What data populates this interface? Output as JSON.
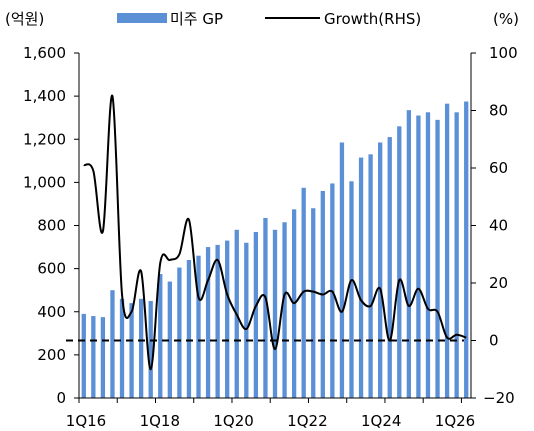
{
  "chart_data": {
    "type": "bar",
    "unit_left": "(억원)",
    "unit_right": "(%)",
    "legend": {
      "placement": "top"
    },
    "x_tick_labels": [
      "1Q16",
      "1Q18",
      "1Q20",
      "1Q22",
      "1Q24",
      "1Q26"
    ],
    "left_axis": {
      "ylim": [
        0,
        1600
      ],
      "ticks": [
        0,
        200,
        400,
        600,
        800,
        1000,
        1200,
        1400,
        1600
      ]
    },
    "right_axis": {
      "ylim": [
        -20,
        100
      ],
      "ticks": [
        -20,
        0,
        20,
        40,
        60,
        80,
        100
      ]
    },
    "categories": [
      "1Q16",
      "2Q16",
      "3Q16",
      "4Q16",
      "1Q17",
      "2Q17",
      "3Q17",
      "4Q17",
      "1Q18",
      "2Q18",
      "3Q18",
      "4Q18",
      "1Q19",
      "2Q19",
      "3Q19",
      "4Q19",
      "1Q20",
      "2Q20",
      "3Q20",
      "4Q20",
      "1Q21",
      "2Q21",
      "3Q21",
      "4Q21",
      "1Q22",
      "2Q22",
      "3Q22",
      "4Q22",
      "1Q23",
      "2Q23",
      "3Q23",
      "4Q23",
      "1Q24",
      "2Q24",
      "3Q24",
      "4Q24",
      "1Q25",
      "2Q25",
      "3Q25",
      "4Q25",
      "1Q26"
    ],
    "series": [
      {
        "name": "미주 GP",
        "type": "bar",
        "axis": "left",
        "color": "#5b8fd6",
        "values": [
          390,
          380,
          375,
          500,
          460,
          440,
          460,
          450,
          575,
          540,
          605,
          640,
          660,
          700,
          710,
          730,
          780,
          720,
          770,
          835,
          780,
          815,
          875,
          975,
          880,
          960,
          995,
          1185,
          1005,
          1115,
          1130,
          1185,
          1210,
          1260,
          1335,
          1310,
          1325,
          1290,
          1365,
          1325,
          1375
        ]
      },
      {
        "name": "Growth(RHS)",
        "type": "line",
        "axis": "right",
        "color": "#000000",
        "values": [
          61,
          59,
          38,
          85,
          16,
          10,
          24,
          -10,
          27,
          28,
          30,
          42,
          15,
          21,
          28,
          16,
          9,
          4,
          12,
          15,
          -3,
          16,
          13,
          17,
          17,
          16,
          17,
          10,
          21,
          14,
          12,
          18,
          0,
          21,
          12,
          18,
          11,
          10,
          1,
          2,
          1
        ]
      }
    ],
    "reference_line": {
      "axis": "right",
      "value": 0,
      "style": "dashed"
    }
  }
}
